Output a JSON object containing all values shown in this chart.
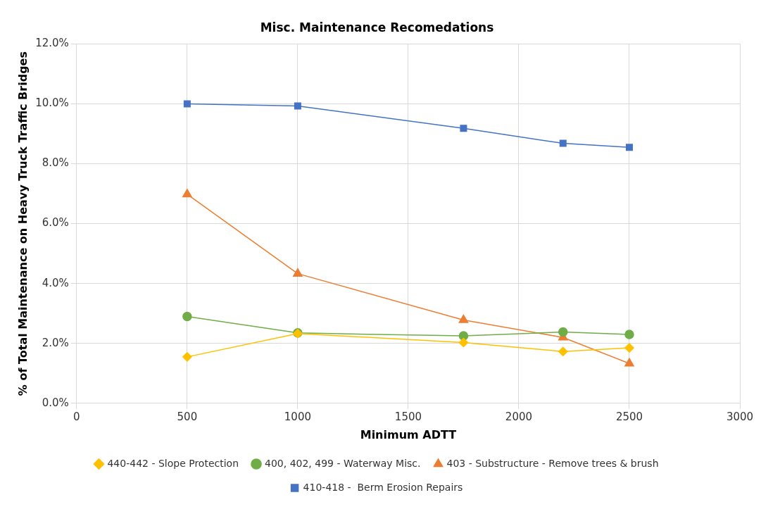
{
  "chart_data": {
    "type": "line",
    "title": "Misc. Maintenance Recomedations",
    "xlabel": "Minimum ADTT",
    "ylabel": "% of Total Maintenance on Heavy Truck Traffic Bridges",
    "x": [
      500,
      1000,
      1750,
      2200,
      2500
    ],
    "series": [
      {
        "name": "410-418 -  Berm Erosion Repairs",
        "color": "#4472c4",
        "marker": "square",
        "values": [
          10.0,
          9.93,
          9.18,
          8.68,
          8.55
        ]
      },
      {
        "name": "403 - Substructure - Remove trees & brush",
        "color": "#ed7d31",
        "marker": "triangle",
        "values": [
          6.98,
          4.33,
          2.78,
          2.2,
          1.33
        ]
      },
      {
        "name": "400, 402, 499 - Waterway Misc.",
        "color": "#70ad47",
        "marker": "circle",
        "values": [
          2.9,
          2.35,
          2.25,
          2.38,
          2.3
        ]
      },
      {
        "name": "440-442 - Slope Protection",
        "color": "#ffc000",
        "marker": "diamond",
        "values": [
          1.55,
          2.33,
          2.03,
          1.73,
          1.85
        ]
      }
    ],
    "xlim": [
      0,
      3000
    ],
    "xticks": [
      0,
      500,
      1000,
      1500,
      2000,
      2500,
      3000
    ],
    "ylim": [
      0,
      12
    ],
    "yticks": [
      {
        "value": 0,
        "label": "0.0%"
      },
      {
        "value": 2,
        "label": "2.0%"
      },
      {
        "value": 4,
        "label": "4.0%"
      },
      {
        "value": 6,
        "label": "6.0%"
      },
      {
        "value": 8,
        "label": "8.0%"
      },
      {
        "value": 10,
        "label": "10.0%"
      },
      {
        "value": 12,
        "label": "12.0%"
      }
    ],
    "grid": true,
    "legend": "bottom",
    "line_style": "solid"
  }
}
